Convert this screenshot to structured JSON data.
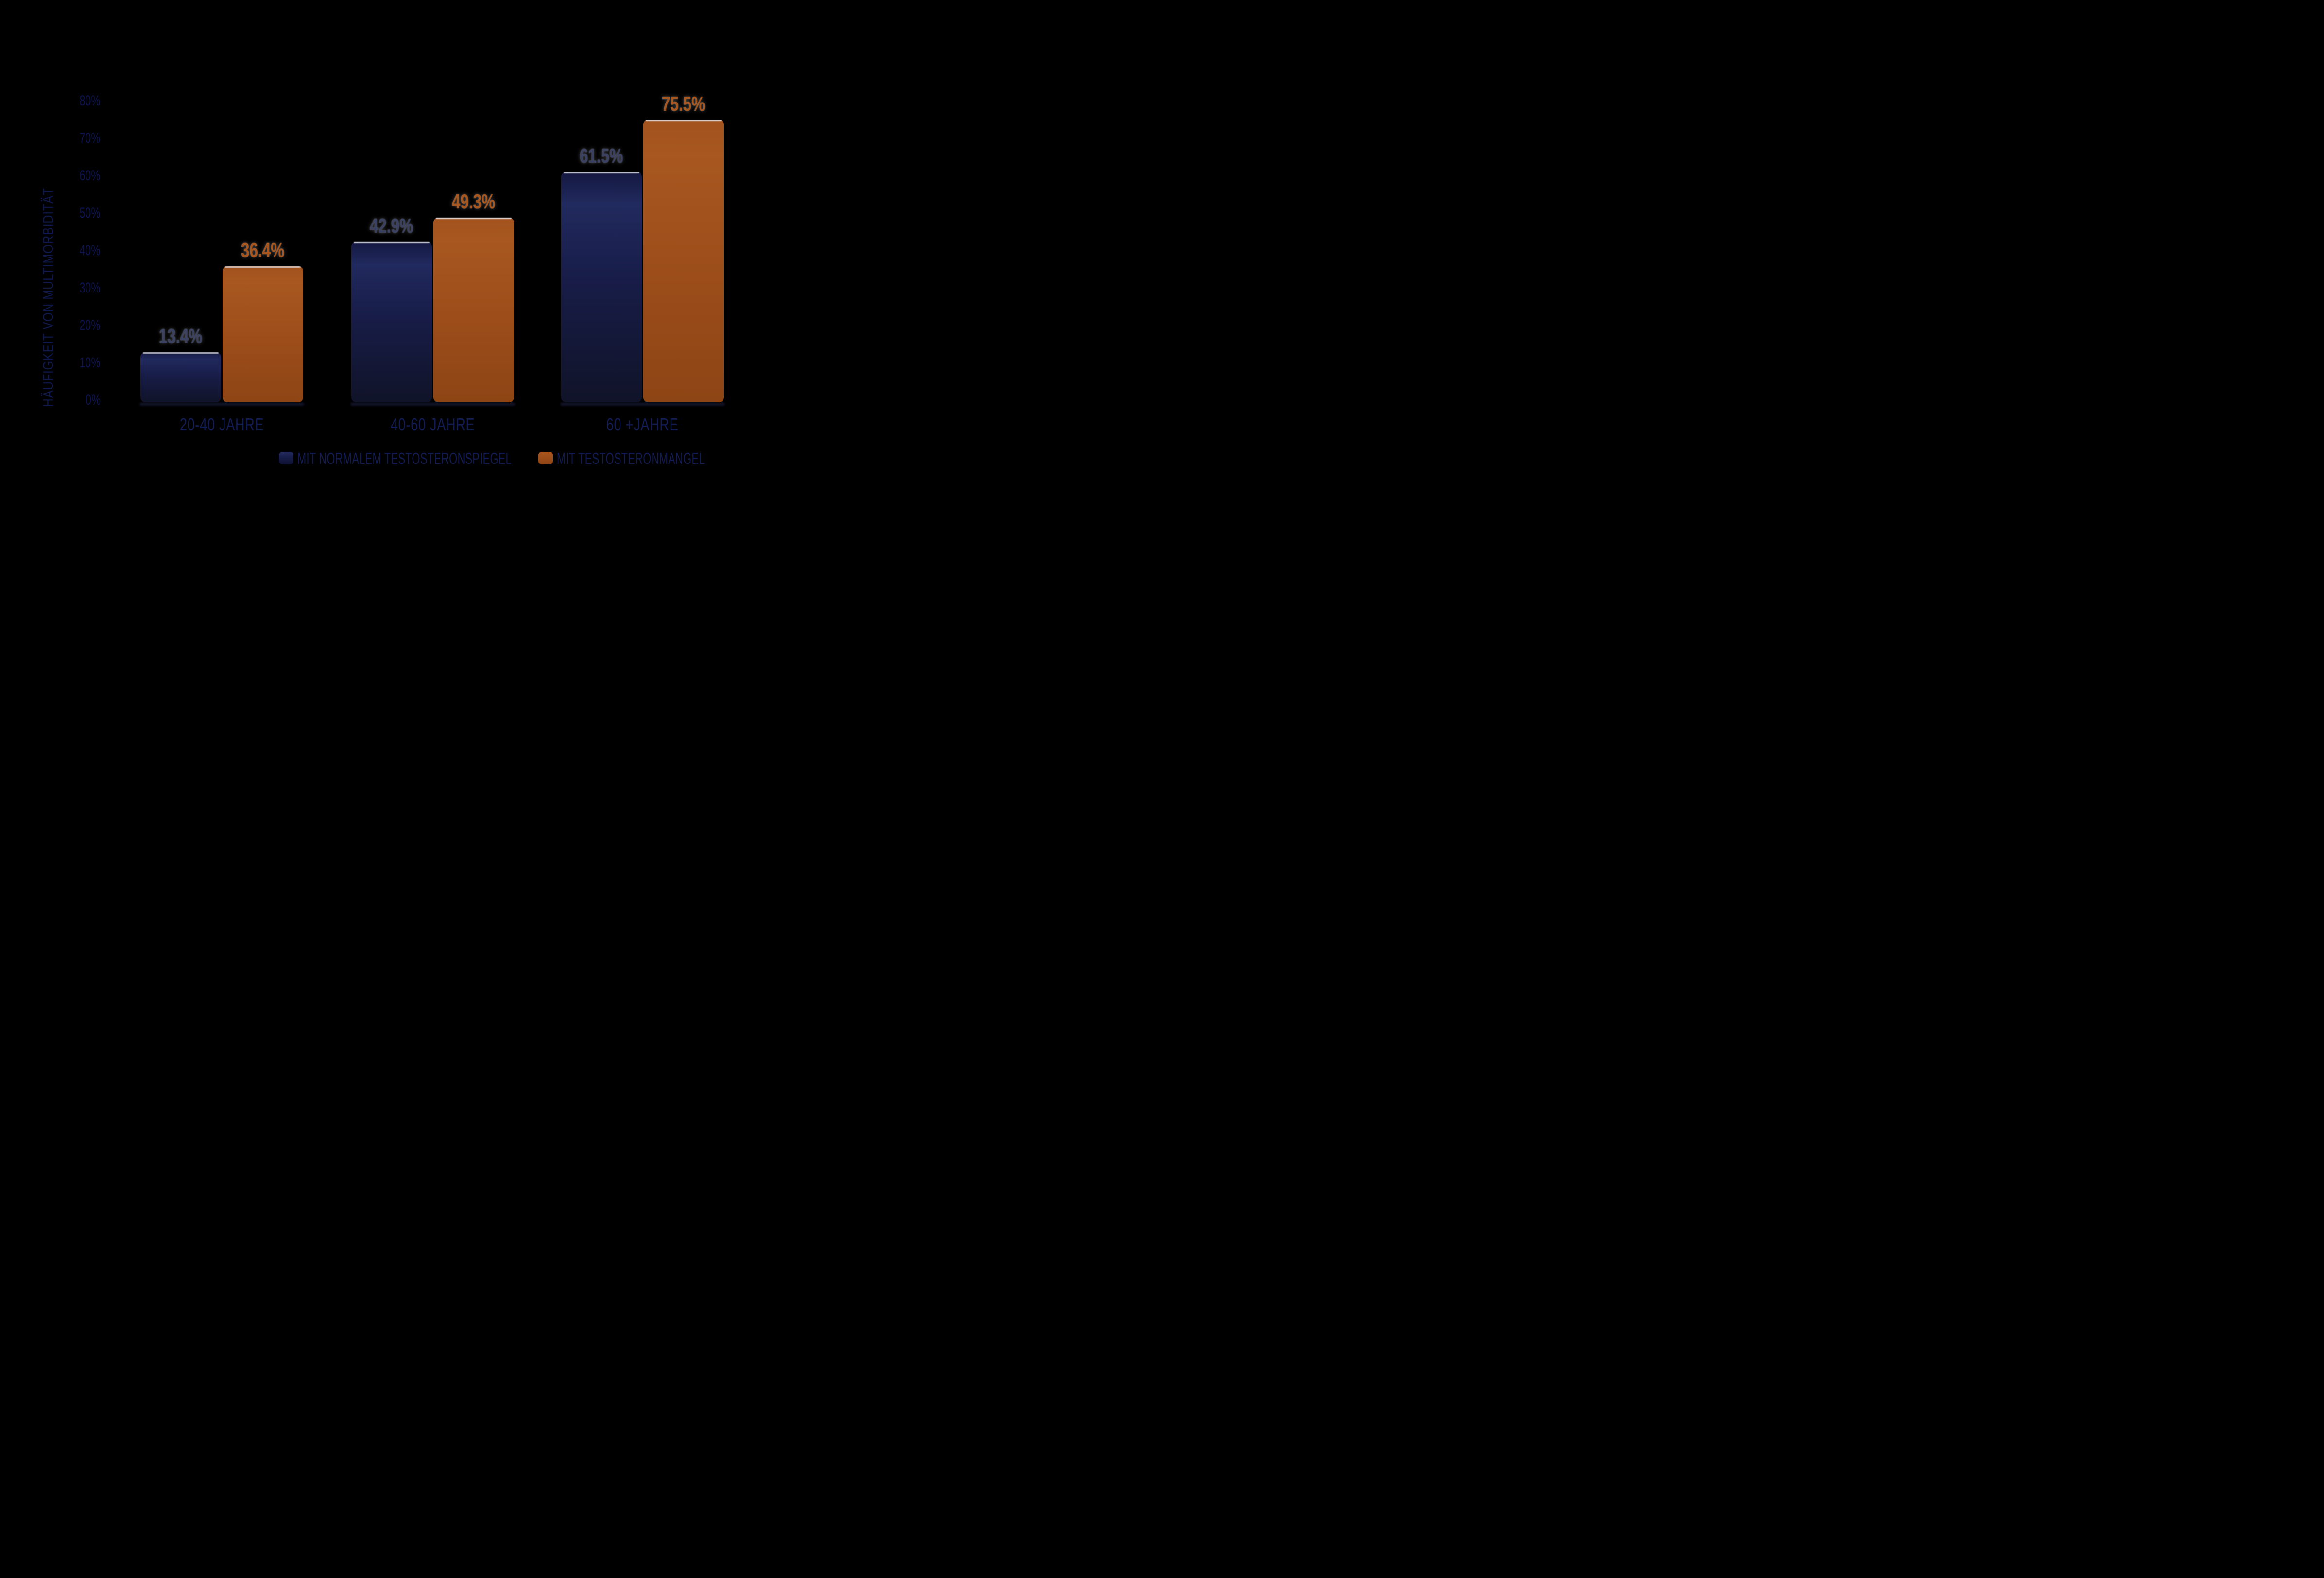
{
  "background_color": "#000000",
  "chart_data": {
    "type": "bar",
    "title": "",
    "ylabel": "HÄUFIGKEIT VON MULTIMORBIDITÄT",
    "xlabel": "",
    "categories": [
      "20-40 JAHRE",
      "40-60 JAHRE",
      "60 +JAHRE"
    ],
    "series": [
      {
        "name": "MIT NORMALEM TESTOSTERONSPIEGEL",
        "values": [
          13.4,
          42.9,
          61.5
        ],
        "labels": [
          "13.4%",
          "42.9%",
          "61.5%"
        ],
        "color_top": "#212a5e",
        "color_bottom": "#101328",
        "label_color": "#3a4161"
      },
      {
        "name": "MIT TESTOSTERONMANGEL",
        "values": [
          36.4,
          49.3,
          75.5
        ],
        "labels": [
          "36.4%",
          "49.3%",
          "75.5%"
        ],
        "color_top": "#a85720",
        "color_bottom": "#8e4515",
        "label_color": "#a8571e"
      }
    ],
    "y_ticks": [
      "0%",
      "10%",
      "20%",
      "30%",
      "40%",
      "50%",
      "60%",
      "70%",
      "80%"
    ],
    "ylim": [
      0,
      80
    ],
    "grid": false,
    "legend_position": "bottom",
    "tick_color": "#0d1450",
    "category_color": "#131d55",
    "legend_text_color": "#131c52",
    "ytitle_color": "#111a4f"
  }
}
